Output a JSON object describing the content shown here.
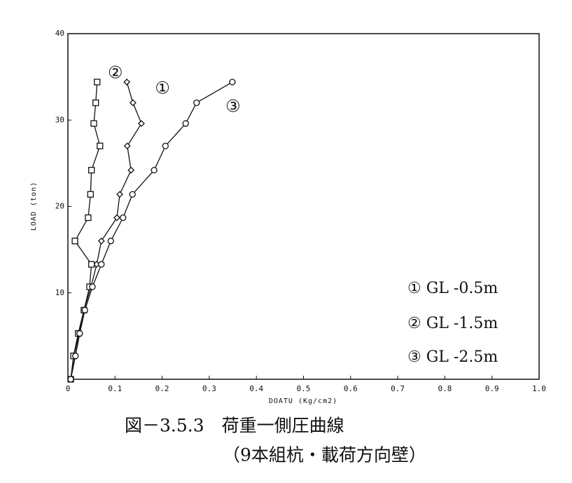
{
  "chart_data": {
    "type": "line",
    "xlabel": "DOATU (Kg/cm2)",
    "ylabel": "LOAD (ton)",
    "xlim": [
      0,
      1
    ],
    "ylim": [
      0,
      40
    ],
    "xticks": [
      0,
      0.1,
      0.2,
      0.3,
      0.4,
      0.5,
      0.6,
      0.7,
      0.8,
      0.9,
      {
        "value": 1,
        "label": "1.0"
      }
    ],
    "yticks": [
      10,
      20,
      30,
      40
    ],
    "series": [
      {
        "name": "① GL -0.5m",
        "callout": "①",
        "color": "#111111",
        "marker": "diamond",
        "x": [
          0.006,
          0.013,
          0.024,
          0.034,
          0.049,
          0.061,
          0.071,
          0.104,
          0.11,
          0.134,
          0.126,
          0.156,
          0.138,
          0.125
        ],
        "values": [
          0,
          2.7,
          5.3,
          8,
          10.7,
          13.3,
          16,
          18.7,
          21.4,
          24.2,
          27,
          29.6,
          32,
          34.4
        ]
      },
      {
        "name": "② GL -1.5m",
        "callout": "②",
        "color": "#111111",
        "marker": "square",
        "x": [
          0.006,
          0.012,
          0.022,
          0.034,
          0.046,
          0.05,
          0.015,
          0.043,
          0.048,
          0.05,
          0.068,
          0.055,
          0.059,
          0.062
        ],
        "values": [
          0,
          2.7,
          5.3,
          8,
          10.7,
          13.3,
          16,
          18.7,
          21.4,
          24.2,
          27,
          29.6,
          32,
          34.4
        ]
      },
      {
        "name": "③ GL -2.5m",
        "callout": "③",
        "color": "#111111",
        "marker": "circle",
        "x": [
          0.006,
          0.016,
          0.025,
          0.036,
          0.052,
          0.071,
          0.091,
          0.117,
          0.137,
          0.183,
          0.207,
          0.25,
          0.273,
          0.349
        ],
        "values": [
          0,
          2.7,
          5.3,
          8,
          10.7,
          13.3,
          16,
          18.7,
          21.4,
          24.2,
          27,
          29.6,
          32,
          34.4
        ]
      }
    ],
    "caption": [
      "図－3.5.3　荷重一側圧曲線",
      "（9本組杭・載荷方向壁）"
    ]
  }
}
